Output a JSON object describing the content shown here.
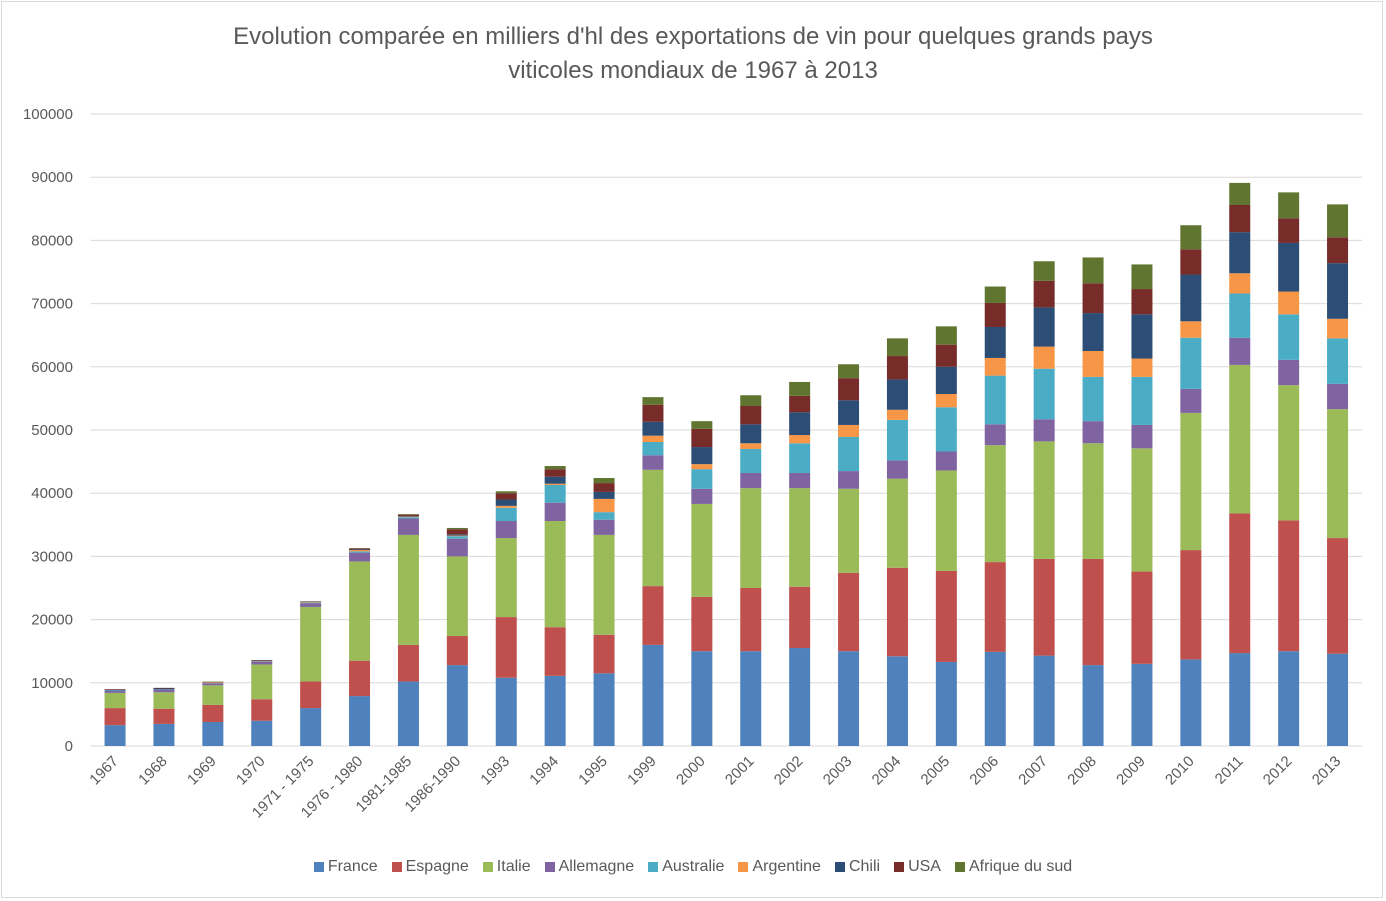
{
  "chart_data": {
    "type": "bar",
    "stacked": true,
    "title": [
      "Evolution comparée en milliers d'hl des exportations de vin pour quelques grands pays",
      "viticoles mondiaux de 1967 à 2013"
    ],
    "xlabel": "",
    "ylabel": "",
    "ylim": [
      0,
      100000
    ],
    "yticks": [
      0,
      10000,
      20000,
      30000,
      40000,
      50000,
      60000,
      70000,
      80000,
      90000,
      100000
    ],
    "grid": true,
    "legend_position": "bottom",
    "categories": [
      "1967",
      "1968",
      "1969",
      "1970",
      "1971 - 1975",
      "1976 - 1980",
      "1981-1985",
      "1986-1990",
      "1993",
      "1994",
      "1995",
      "1999",
      "2000",
      "2001",
      "2002",
      "2003",
      "2004",
      "2005",
      "2006",
      "2007",
      "2008",
      "2009",
      "2010",
      "2011",
      "2012",
      "2013"
    ],
    "series": [
      {
        "name": "France",
        "color": "#4F81BD",
        "values": [
          3300,
          3500,
          3800,
          4000,
          6000,
          7900,
          10200,
          12800,
          10800,
          11100,
          11500,
          16000,
          15000,
          15000,
          15500,
          15000,
          14200,
          13300,
          14900,
          14300,
          12800,
          13000,
          13700,
          14700,
          15000,
          14600
        ]
      },
      {
        "name": "Espagne",
        "color": "#C0504D",
        "values": [
          2700,
          2400,
          2700,
          3400,
          4200,
          5600,
          5800,
          4600,
          9600,
          7700,
          6100,
          9300,
          8600,
          10000,
          9700,
          12400,
          14000,
          14400,
          14200,
          15300,
          16800,
          14600,
          17300,
          22100,
          20700,
          18300
        ]
      },
      {
        "name": "Italie",
        "color": "#9BBB59",
        "values": [
          2400,
          2600,
          3100,
          5500,
          11800,
          15700,
          17400,
          12600,
          12500,
          16800,
          15800,
          18400,
          14700,
          15800,
          15600,
          13300,
          14100,
          15900,
          18500,
          18600,
          18300,
          19500,
          21700,
          23500,
          21400,
          20400
        ]
      },
      {
        "name": "Allemagne",
        "color": "#8064A2",
        "values": [
          300,
          400,
          300,
          400,
          600,
          1400,
          2600,
          2800,
          2700,
          2900,
          2400,
          2300,
          2400,
          2400,
          2400,
          2800,
          2900,
          3000,
          3300,
          3500,
          3500,
          3700,
          3800,
          4300,
          4000,
          4000
        ]
      },
      {
        "name": "Australie",
        "color": "#4BACC6",
        "values": [
          100,
          50,
          50,
          50,
          100,
          200,
          200,
          400,
          2100,
          2800,
          1200,
          2100,
          3100,
          3800,
          4700,
          5400,
          6400,
          7000,
          7700,
          8000,
          7000,
          7600,
          8100,
          7000,
          7200,
          7200
        ]
      },
      {
        "name": "Argentine",
        "color": "#F79646",
        "values": [
          0,
          0,
          100,
          50,
          100,
          200,
          100,
          100,
          300,
          200,
          2100,
          1000,
          800,
          900,
          1300,
          1900,
          1600,
          2100,
          2800,
          3500,
          4100,
          2900,
          2600,
          3200,
          3600,
          3100
        ]
      },
      {
        "name": "Chili",
        "color": "#2C4D75",
        "values": [
          100,
          150,
          50,
          100,
          50,
          100,
          100,
          200,
          1000,
          1100,
          1100,
          2200,
          2700,
          3000,
          3600,
          3900,
          4800,
          4300,
          4900,
          6200,
          6000,
          7000,
          7400,
          6500,
          7700,
          8800
        ]
      },
      {
        "name": "USA",
        "color": "#772C2A",
        "values": [
          100,
          100,
          50,
          100,
          50,
          150,
          200,
          800,
          1000,
          1200,
          1400,
          2700,
          2900,
          2900,
          2600,
          3500,
          3700,
          3500,
          3800,
          4200,
          4700,
          4000,
          4000,
          4300,
          3900,
          4100
        ]
      },
      {
        "name": "Afrique du sud",
        "color": "#5F7530",
        "values": [
          0,
          0,
          50,
          0,
          0,
          50,
          100,
          200,
          300,
          500,
          800,
          1200,
          1200,
          1700,
          2200,
          2200,
          2800,
          2900,
          2600,
          3100,
          4100,
          3900,
          3800,
          3500,
          4100,
          5200
        ]
      }
    ]
  }
}
